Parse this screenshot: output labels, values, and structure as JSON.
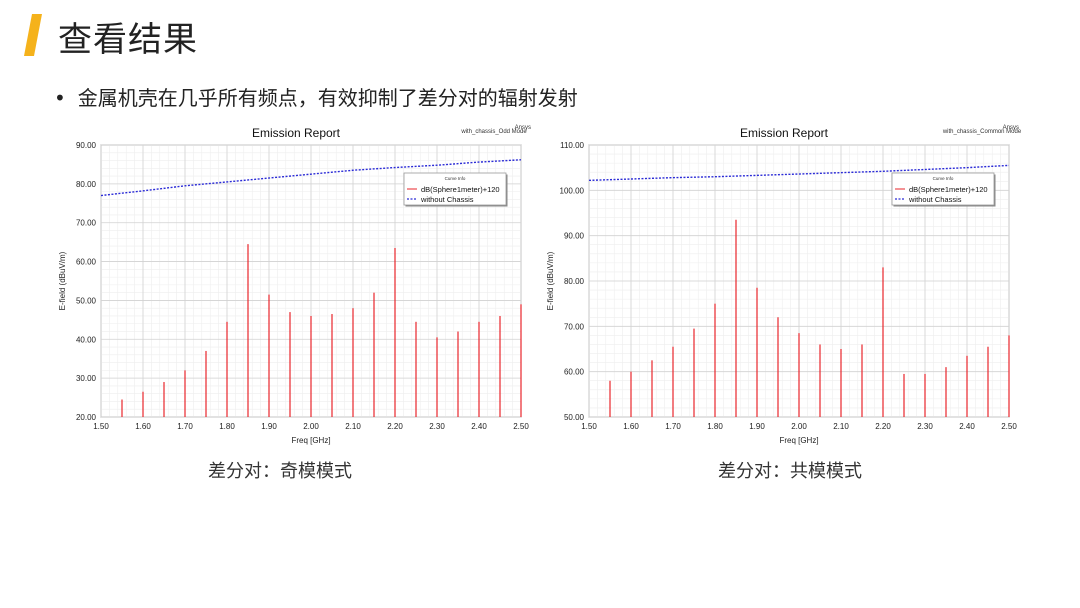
{
  "slide": {
    "title": "查看结果",
    "bullet": "金属机壳在几乎所有频点，有效抑制了差分对的辐射发射",
    "accent_color": "#F5B21B"
  },
  "chart_data": [
    {
      "type": "bar",
      "title": "Emission Report",
      "tag": "with_chassis_Odd Mode",
      "brand": "Ansys",
      "xlabel": "Freq [GHz]",
      "ylabel": "E-field (dBuV/m)",
      "xlim": [
        1.5,
        2.5
      ],
      "ylim": [
        20,
        90
      ],
      "xticks": [
        "1.50",
        "1.60",
        "1.70",
        "1.80",
        "1.90",
        "2.00",
        "2.10",
        "2.20",
        "2.30",
        "2.40",
        "2.50"
      ],
      "yticks": [
        "20.00",
        "30.00",
        "40.00",
        "50.00",
        "60.00",
        "70.00",
        "80.00",
        "90.00"
      ],
      "grid": true,
      "legend_title": "Curve Info",
      "legend_position": "top-right",
      "caption": "差分对：奇模模式",
      "series": [
        {
          "name": "dB(Sphere1meter)+120",
          "style": "stem",
          "color": "#e8262b",
          "x": [
            1.55,
            1.6,
            1.65,
            1.7,
            1.75,
            1.8,
            1.85,
            1.9,
            1.95,
            2.0,
            2.05,
            2.1,
            2.15,
            2.2,
            2.25,
            2.3,
            2.35,
            2.4,
            2.45,
            2.5
          ],
          "y": [
            24.5,
            26.5,
            29.0,
            32.0,
            37.0,
            44.5,
            64.5,
            51.5,
            47.0,
            46.0,
            46.5,
            48.0,
            52.0,
            63.5,
            44.5,
            40.5,
            42.0,
            44.5,
            46.0,
            49.0
          ]
        },
        {
          "name": "without Chassis",
          "style": "dashed-line",
          "color": "#2b2bd6",
          "x": [
            1.5,
            1.6,
            1.7,
            1.8,
            1.9,
            2.0,
            2.1,
            2.2,
            2.3,
            2.4,
            2.5
          ],
          "y": [
            77.0,
            78.2,
            79.5,
            80.5,
            81.5,
            82.5,
            83.5,
            84.2,
            84.8,
            85.6,
            86.2
          ]
        }
      ]
    },
    {
      "type": "bar",
      "title": "Emission Report",
      "tag": "with_chassis_Common Mode",
      "brand": "Ansys",
      "xlabel": "Freq [GHz]",
      "ylabel": "E-field (dBuV/m)",
      "xlim": [
        1.5,
        2.5
      ],
      "ylim": [
        50,
        110
      ],
      "xticks": [
        "1.50",
        "1.60",
        "1.70",
        "1.80",
        "1.90",
        "2.00",
        "2.10",
        "2.20",
        "2.30",
        "2.40",
        "2.50"
      ],
      "yticks": [
        "50.00",
        "60.00",
        "70.00",
        "80.00",
        "90.00",
        "100.00",
        "110.00"
      ],
      "grid": true,
      "legend_title": "Curve Info",
      "legend_position": "top-right",
      "caption": "差分对：共模模式",
      "series": [
        {
          "name": "dB(Sphere1meter)+120",
          "style": "stem",
          "color": "#e8262b",
          "x": [
            1.55,
            1.6,
            1.65,
            1.7,
            1.75,
            1.8,
            1.85,
            1.9,
            1.95,
            2.0,
            2.05,
            2.1,
            2.15,
            2.2,
            2.25,
            2.3,
            2.35,
            2.4,
            2.45,
            2.5
          ],
          "y": [
            58.0,
            60.0,
            62.5,
            65.5,
            69.5,
            75.0,
            93.5,
            78.5,
            72.0,
            68.5,
            66.0,
            65.0,
            66.0,
            83.0,
            59.5,
            59.5,
            61.0,
            63.5,
            65.5,
            68.0
          ]
        },
        {
          "name": "without Chassis",
          "style": "dashed-line",
          "color": "#2b2bd6",
          "x": [
            1.5,
            1.6,
            1.7,
            1.8,
            1.9,
            2.0,
            2.1,
            2.2,
            2.3,
            2.4,
            2.5
          ],
          "y": [
            102.2,
            102.5,
            102.8,
            103.0,
            103.3,
            103.6,
            103.9,
            104.2,
            104.6,
            105.0,
            105.5
          ]
        }
      ]
    }
  ]
}
